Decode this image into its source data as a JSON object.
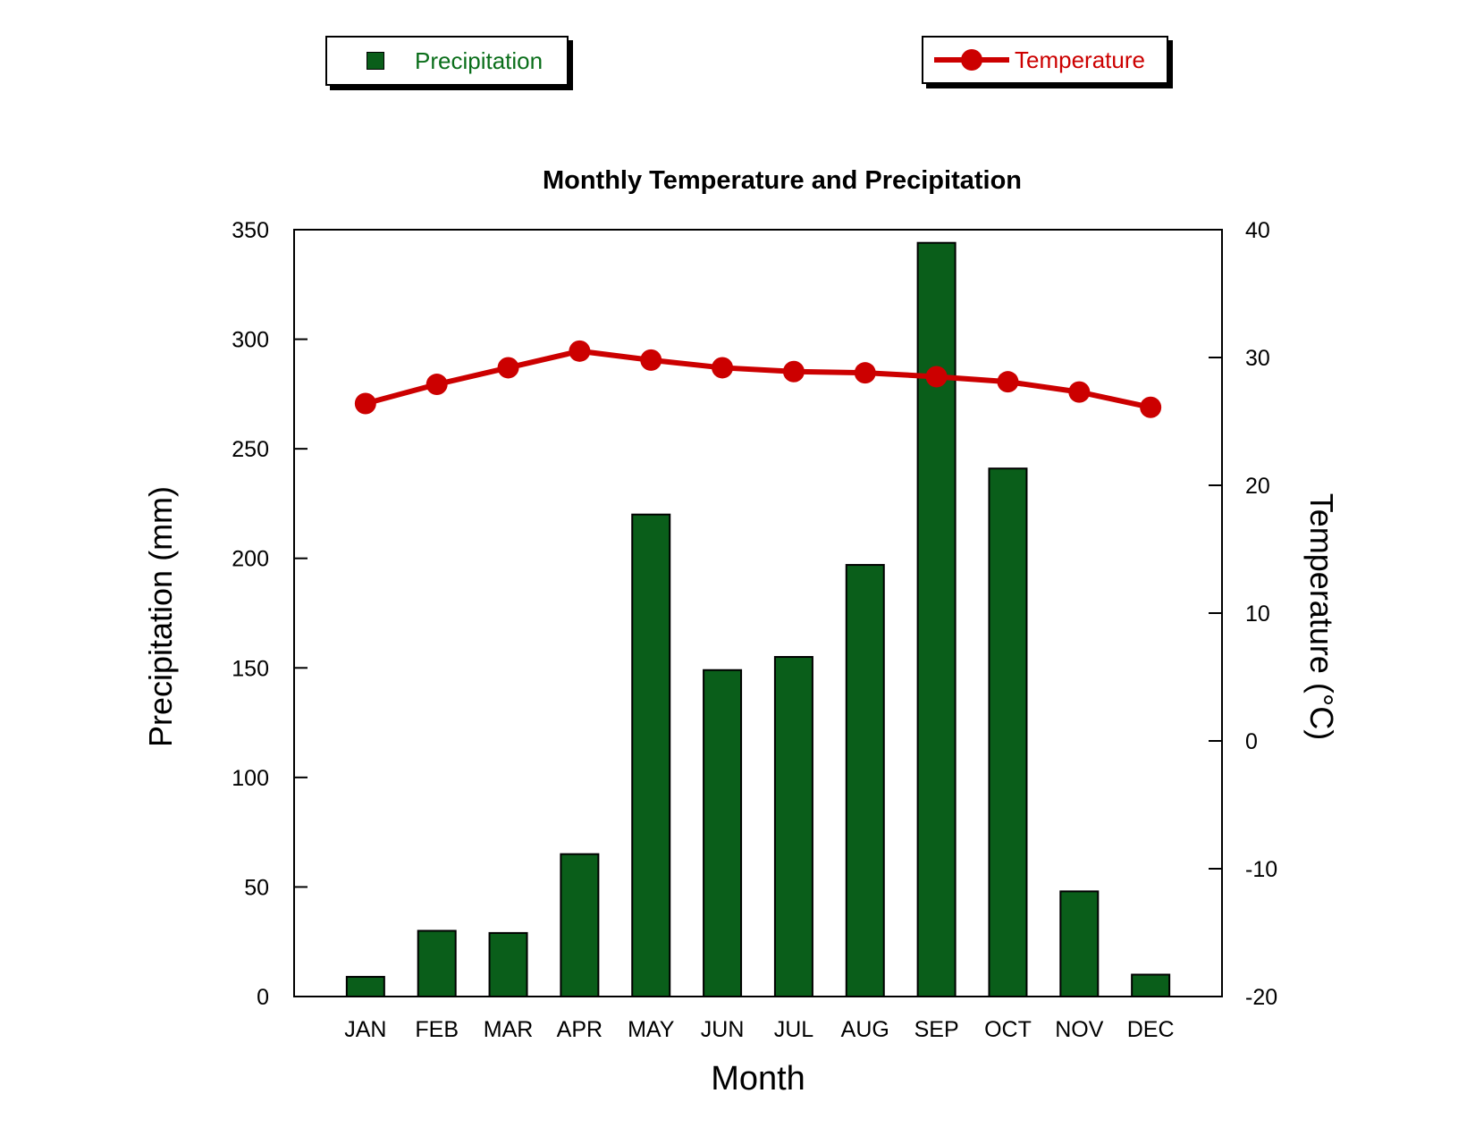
{
  "chart_data": {
    "type": "bar+line",
    "title": "Monthly Temperature and Precipitation",
    "xlabel": "Month",
    "categories": [
      "JAN",
      "FEB",
      "MAR",
      "APR",
      "MAY",
      "JUN",
      "JUL",
      "AUG",
      "SEP",
      "OCT",
      "NOV",
      "DEC"
    ],
    "series": [
      {
        "name": "Precipitation",
        "type": "bar",
        "axis": "left",
        "color": "#0a5e1a",
        "values": [
          9,
          30,
          29,
          65,
          220,
          149,
          155,
          197,
          344,
          241,
          48,
          10
        ]
      },
      {
        "name": "Temperature",
        "type": "line",
        "axis": "right",
        "color": "#cc0000",
        "values": [
          26.4,
          27.9,
          29.2,
          30.5,
          29.8,
          29.2,
          28.9,
          28.8,
          28.5,
          28.1,
          27.3,
          26.1
        ]
      }
    ],
    "y_left": {
      "label": "Precipitation (mm)",
      "lim": [
        0,
        350
      ],
      "ticks": [
        0,
        50,
        100,
        150,
        200,
        250,
        300,
        350
      ]
    },
    "y_right": {
      "label": "Temperature (°C)",
      "lim": [
        -20,
        40
      ],
      "ticks": [
        -20,
        -10,
        0,
        10,
        20,
        30,
        40
      ]
    },
    "grid": false,
    "legend": "top"
  }
}
